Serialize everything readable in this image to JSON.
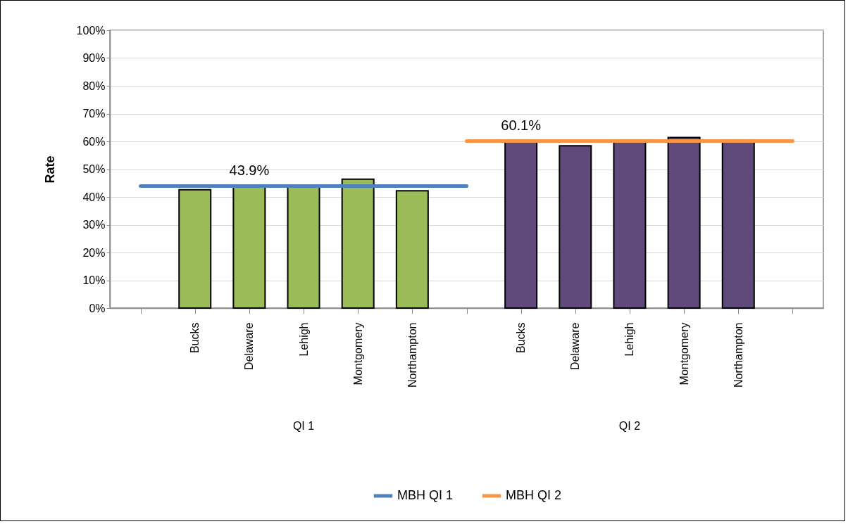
{
  "chart_data": {
    "type": "bar",
    "ylabel": "Rate",
    "categories": [
      null,
      "Bucks",
      "Delaware",
      "Lehigh",
      "Montgomery",
      "Northampton",
      null,
      "Bucks",
      "Delaware",
      "Lehigh",
      "Montgomery",
      "Northampton",
      null
    ],
    "series": [
      {
        "color": "#9bbb59",
        "values": [
          null,
          42.6,
          44,
          44,
          46.4,
          42.2,
          null,
          null,
          null,
          null,
          null,
          null,
          null
        ]
      },
      {
        "color": "#604a7b",
        "values": [
          null,
          null,
          null,
          null,
          null,
          null,
          null,
          60,
          58.4,
          60,
          61.4,
          60,
          null
        ]
      },
      {
        "name": "MBH QI 1",
        "type": "line",
        "color": "#4f81bd",
        "values": [
          43.9,
          43.9,
          43.9,
          43.9,
          43.9,
          43.9,
          43.9,
          null,
          null,
          null,
          null,
          null,
          null
        ],
        "value_labels": [
          null,
          null,
          "43.9%",
          null,
          null,
          null,
          null,
          null,
          null,
          null,
          null,
          null,
          null
        ]
      },
      {
        "name": "MBH QI 2",
        "type": "line",
        "color": "#f79646",
        "values": [
          null,
          null,
          null,
          null,
          null,
          null,
          60.1,
          60.1,
          60.1,
          60.1,
          60.1,
          60.1,
          60.1
        ],
        "value_labels": [
          null,
          null,
          null,
          null,
          null,
          null,
          null,
          "60.1%",
          null,
          null,
          null,
          null,
          null
        ]
      }
    ],
    "annotations": [
      "QI 1",
      "QI 2"
    ],
    "ylim": [
      0,
      100
    ],
    "yticks": [
      {
        "value": 0,
        "label": "0%"
      },
      {
        "value": 10,
        "label": "10%"
      },
      {
        "value": 20,
        "label": "20%"
      },
      {
        "value": 30,
        "label": "30%"
      },
      {
        "value": 40,
        "label": "40%"
      },
      {
        "value": 50,
        "label": "50%"
      },
      {
        "value": 60,
        "label": "60%"
      },
      {
        "value": 70,
        "label": "70%"
      },
      {
        "value": 80,
        "label": "80%"
      },
      {
        "value": 90,
        "label": "90%"
      },
      {
        "value": 100,
        "label": "100%"
      }
    ],
    "grid": "y",
    "legend": "bottom"
  }
}
